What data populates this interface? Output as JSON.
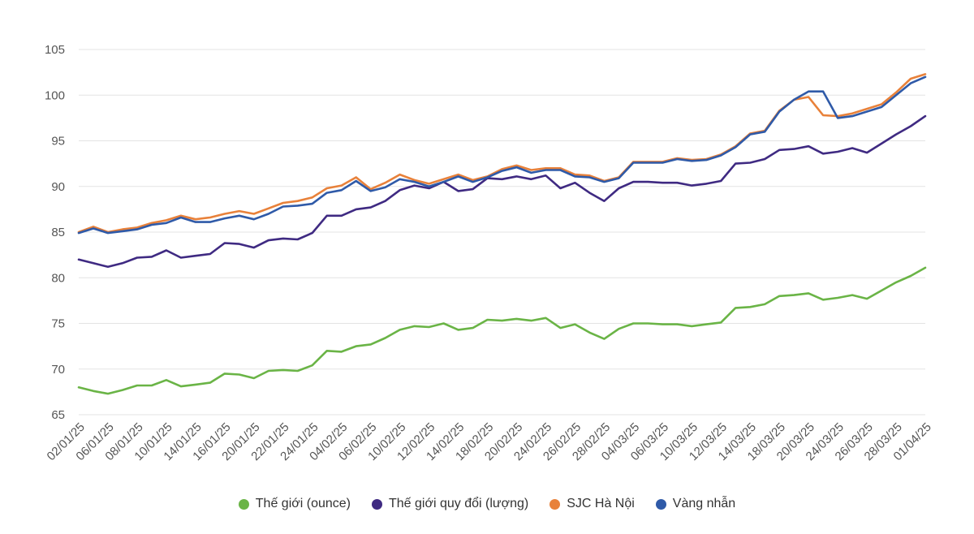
{
  "chart_data": {
    "type": "line",
    "title": "",
    "xlabel": "",
    "ylabel": "",
    "ylim": [
      65,
      105
    ],
    "yticks": [
      65,
      70,
      75,
      80,
      85,
      90,
      95,
      100,
      105
    ],
    "grid": true,
    "legend_position": "bottom-center",
    "x_tick_labels": [
      "02/01/25",
      "06/01/25",
      "08/01/25",
      "10/01/25",
      "14/01/25",
      "16/01/25",
      "20/01/25",
      "22/01/25",
      "24/01/25",
      "04/02/25",
      "06/02/25",
      "10/02/25",
      "12/02/25",
      "14/02/25",
      "18/02/25",
      "20/02/25",
      "24/02/25",
      "26/02/25",
      "28/02/25",
      "04/03/25",
      "06/03/25",
      "10/03/25",
      "12/03/25",
      "14/03/25",
      "18/03/25",
      "20/03/25",
      "24/03/25",
      "26/03/25",
      "28/03/25",
      "01/04/25"
    ],
    "series": [
      {
        "name": "Thế giới (ounce)",
        "color": "#6ab446",
        "values": [
          68.0,
          67.6,
          67.3,
          67.7,
          68.2,
          68.2,
          68.8,
          68.1,
          68.3,
          68.5,
          69.5,
          69.4,
          69.0,
          69.8,
          69.9,
          69.8,
          70.4,
          72.0,
          71.9,
          72.5,
          72.7,
          73.4,
          74.3,
          74.7,
          74.6,
          75.0,
          74.3,
          74.5,
          75.4,
          75.3,
          75.5,
          75.3,
          75.6,
          74.5,
          74.9,
          74.0,
          73.3,
          74.4,
          75.0,
          75.0,
          74.9,
          74.9,
          74.7,
          74.9,
          75.1,
          76.7,
          76.8,
          77.1,
          78.0,
          78.1,
          78.3,
          77.6,
          77.8,
          78.1,
          77.7,
          78.6,
          79.5,
          80.2,
          81.1
        ]
      },
      {
        "name": "Thế giới quy đổi (lượng)",
        "color": "#3f2a82",
        "values": [
          82.0,
          81.6,
          81.2,
          81.6,
          82.2,
          82.3,
          83.0,
          82.2,
          82.4,
          82.6,
          83.8,
          83.7,
          83.3,
          84.1,
          84.3,
          84.2,
          84.9,
          86.8,
          86.8,
          87.5,
          87.7,
          88.4,
          89.6,
          90.1,
          89.8,
          90.5,
          89.5,
          89.7,
          90.9,
          90.8,
          91.1,
          90.8,
          91.2,
          89.8,
          90.4,
          89.3,
          88.4,
          89.8,
          90.5,
          90.5,
          90.4,
          90.4,
          90.1,
          90.3,
          90.6,
          92.5,
          92.6,
          93.0,
          94.0,
          94.1,
          94.4,
          93.6,
          93.8,
          94.2,
          93.7,
          94.7,
          95.7,
          96.6,
          97.7
        ]
      },
      {
        "name": "SJC Hà Nội",
        "color": "#e8813a",
        "values": [
          85.0,
          85.6,
          85.0,
          85.3,
          85.5,
          86.0,
          86.3,
          86.8,
          86.4,
          86.6,
          87.0,
          87.3,
          87.0,
          87.6,
          88.2,
          88.4,
          88.8,
          89.8,
          90.1,
          91.0,
          89.7,
          90.4,
          91.3,
          90.7,
          90.3,
          90.8,
          91.3,
          90.7,
          91.1,
          91.9,
          92.3,
          91.8,
          92.0,
          92.0,
          91.3,
          91.2,
          90.6,
          91.0,
          92.7,
          92.7,
          92.7,
          93.1,
          92.9,
          93.0,
          93.5,
          94.4,
          95.8,
          96.1,
          98.3,
          99.5,
          99.8,
          97.8,
          97.7,
          98.0,
          98.5,
          99.0,
          100.3,
          101.8,
          102.3
        ]
      },
      {
        "name": "Vàng nhẫn",
        "color": "#2f5aa8",
        "values": [
          84.9,
          85.4,
          84.9,
          85.1,
          85.3,
          85.8,
          86.0,
          86.6,
          86.1,
          86.1,
          86.5,
          86.8,
          86.4,
          87.0,
          87.8,
          87.9,
          88.1,
          89.3,
          89.6,
          90.6,
          89.5,
          89.9,
          90.8,
          90.5,
          90.0,
          90.5,
          91.1,
          90.5,
          91.0,
          91.7,
          92.1,
          91.5,
          91.8,
          91.8,
          91.1,
          91.0,
          90.5,
          90.9,
          92.6,
          92.6,
          92.6,
          93.0,
          92.8,
          92.9,
          93.4,
          94.3,
          95.7,
          96.0,
          98.2,
          99.5,
          100.4,
          100.4,
          97.5,
          97.7,
          98.2,
          98.7,
          100.0,
          101.3,
          102.0
        ]
      }
    ]
  }
}
